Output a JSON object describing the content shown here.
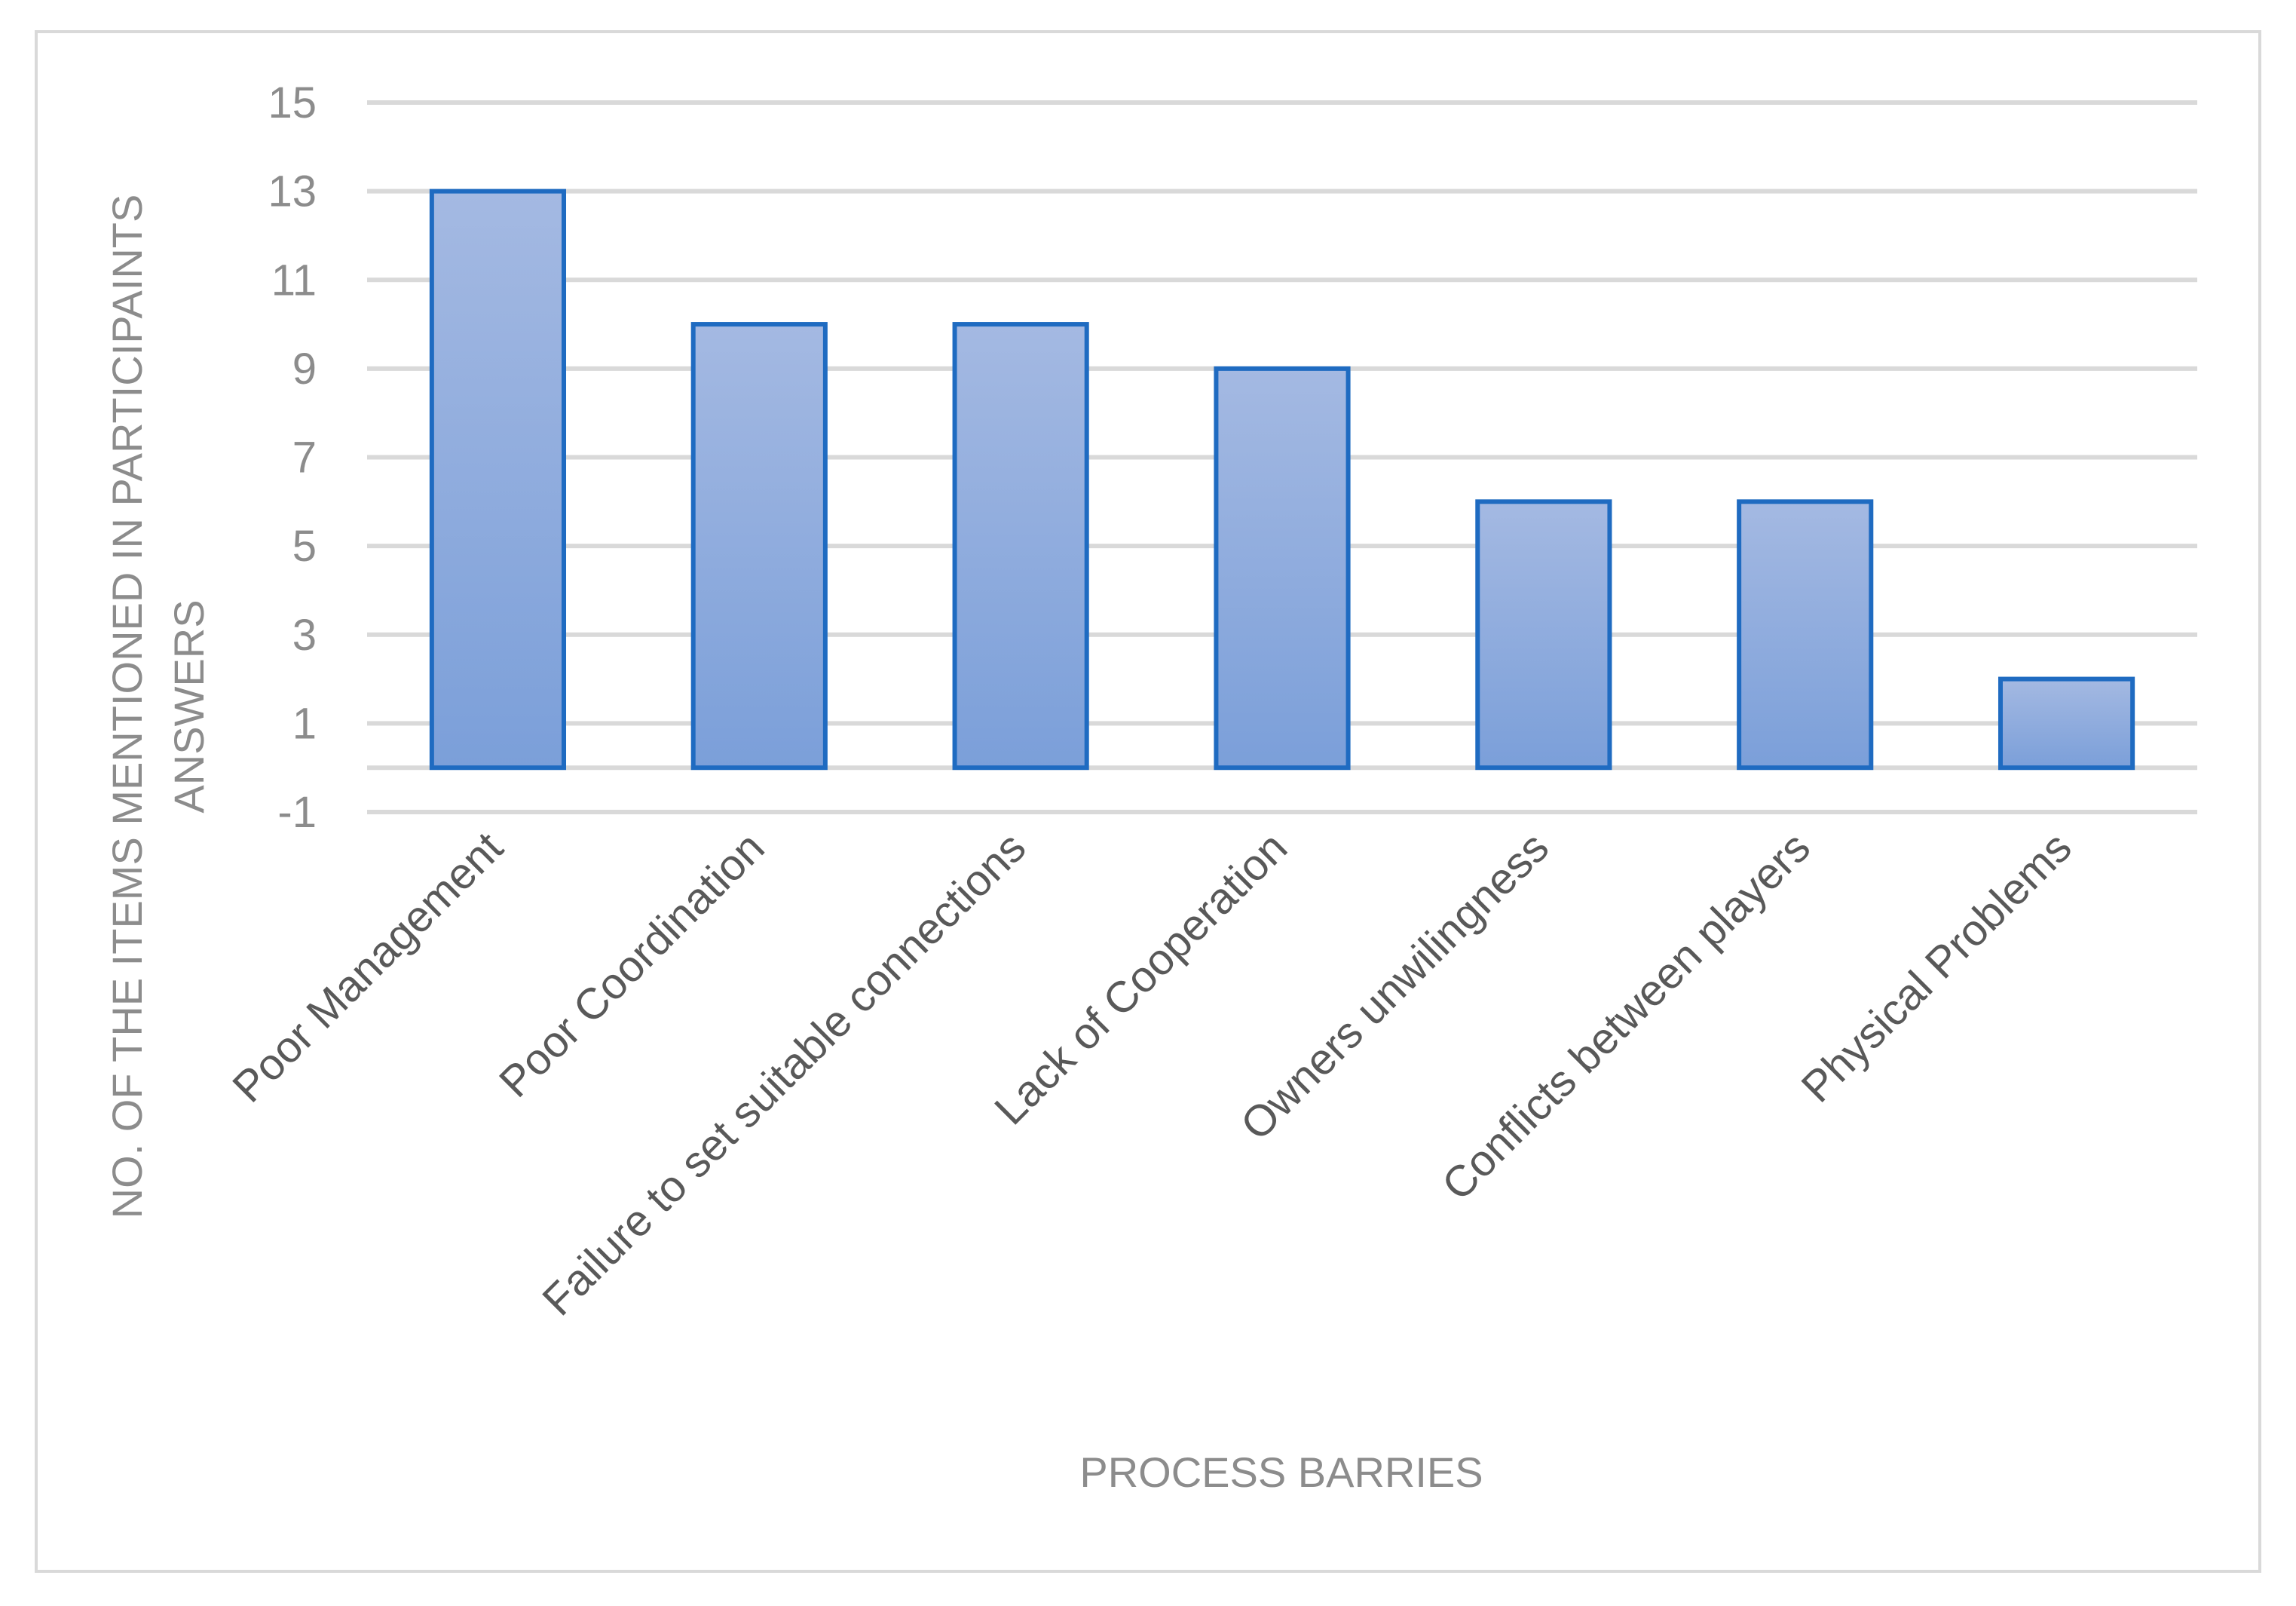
{
  "chart_data": {
    "type": "bar",
    "title": "",
    "xlabel": "PROCESS BARRIES",
    "ylabel_lines": [
      "NO. OF THE ITEMS MENTIONED  IN PARTICIPAINTS",
      "ANSWERS"
    ],
    "categories": [
      "Poor Management",
      "Poor Coordination",
      "Failure to set suitable connections",
      "Lack of Cooperation",
      "Owners unwilingness",
      "Conflicts between players",
      "Physical Problems"
    ],
    "values": [
      13,
      10,
      10,
      9,
      6,
      6,
      2
    ],
    "ylim": [
      -1,
      15
    ],
    "yticks": [
      15,
      13,
      11,
      9,
      7,
      5,
      3,
      1,
      -1
    ],
    "grid": true,
    "legend": "none",
    "colors": {
      "bar_fill_top": "#a4b9e2",
      "bar_fill_bottom": "#7b9fd9",
      "bar_stroke": "#1f6bc1",
      "grid": "#d9d9d9",
      "tick_text": "#8c8c8c",
      "category_text": "#595959"
    }
  }
}
